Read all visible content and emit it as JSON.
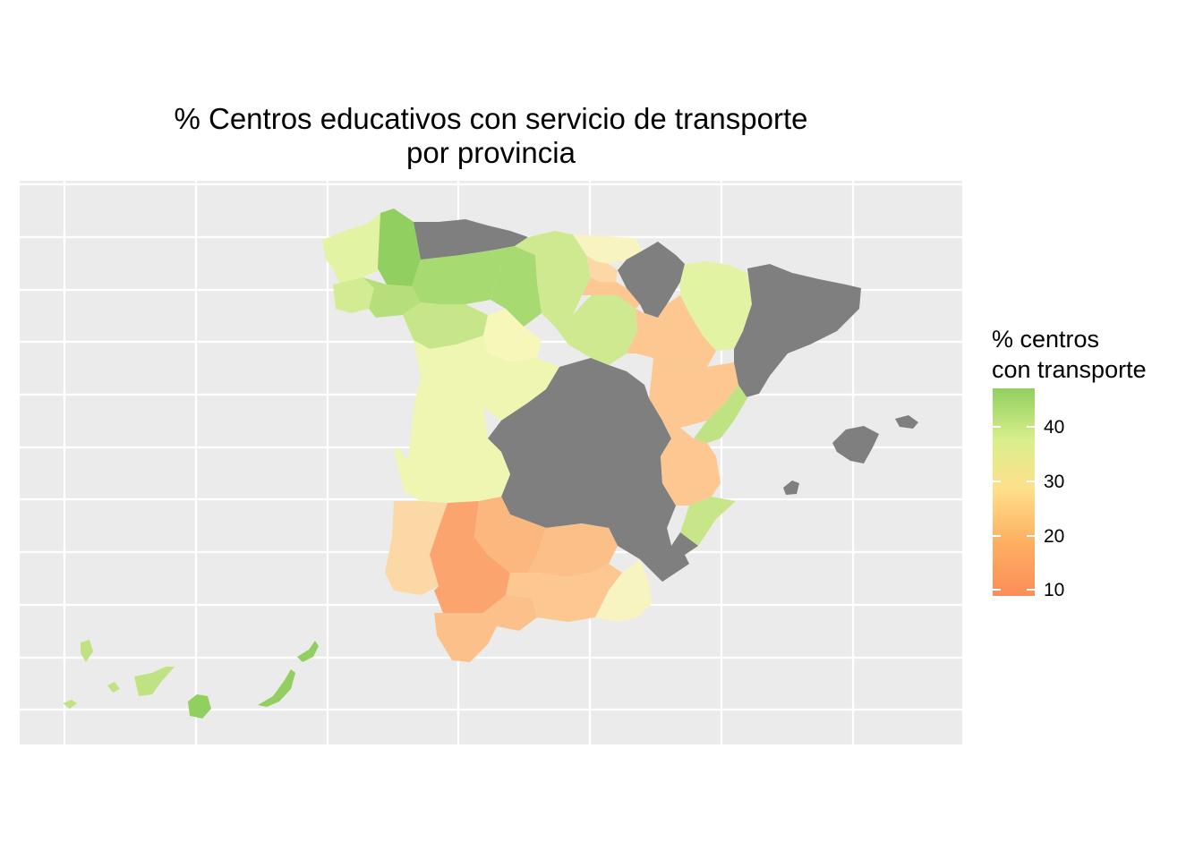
{
  "title": {
    "line1": "% Centros educativos con servicio de transporte",
    "line2": "por provincia"
  },
  "legend": {
    "title_line1": "% centros",
    "title_line2": "con transporte",
    "ticks": [
      "40",
      "30",
      "20",
      "10"
    ],
    "gradient_stops": [
      "#91cf60",
      "#d9ef8b",
      "#fee08b",
      "#fdae61",
      "#fc8d59"
    ]
  },
  "colors": {
    "panel_background": "#ebebeb",
    "grid": "#ffffff",
    "no_data": "#7f7f7f",
    "high": "#91cf60",
    "mid": "#fee08b",
    "low": "#fc8d59"
  },
  "map_data": {
    "variable": "% centros con transporte",
    "no_data_regions": [
      "Cantabria",
      "Asturias",
      "Navarra",
      "Cataluña",
      "Castilla-La Mancha",
      "Murcia",
      "Illes Balears",
      "Madrid"
    ]
  }
}
